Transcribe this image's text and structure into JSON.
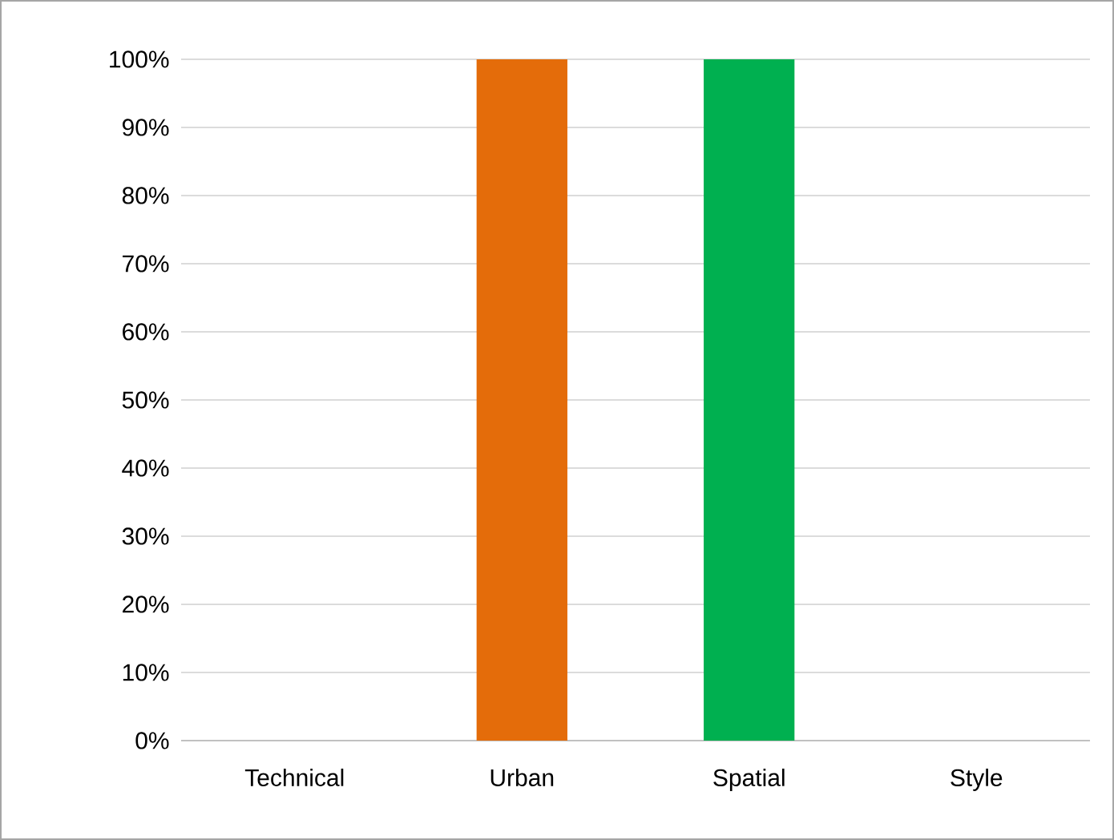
{
  "chart_data": {
    "type": "bar",
    "categories": [
      "Technical",
      "Urban",
      "Spatial",
      "Style"
    ],
    "values": [
      0,
      100,
      100,
      0
    ],
    "colors": [
      "#4f81bd",
      "#e46c0a",
      "#00b050",
      "#4f81bd"
    ],
    "ylim": [
      0,
      100
    ],
    "yticks": [
      {
        "value": 0,
        "label": "0%"
      },
      {
        "value": 10,
        "label": "10%"
      },
      {
        "value": 20,
        "label": "20%"
      },
      {
        "value": 30,
        "label": "30%"
      },
      {
        "value": 40,
        "label": "40%"
      },
      {
        "value": 50,
        "label": "50%"
      },
      {
        "value": 60,
        "label": "60%"
      },
      {
        "value": 70,
        "label": "70%"
      },
      {
        "value": 80,
        "label": "80%"
      },
      {
        "value": 90,
        "label": "90%"
      },
      {
        "value": 100,
        "label": "100%"
      }
    ],
    "grid": "y"
  }
}
